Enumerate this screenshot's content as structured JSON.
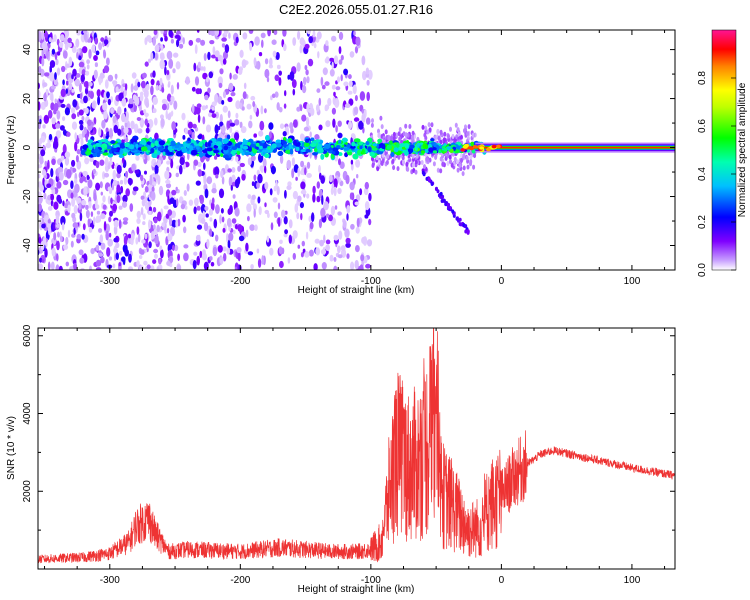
{
  "title": "C2E2.2026.055.01.27.R16",
  "chart_data": [
    {
      "type": "heatmap",
      "name": "spectrogram",
      "xlabel": "Height of straight line (km)",
      "ylabel": "Frequency (Hz)",
      "xlim": [
        -355,
        133
      ],
      "ylim": [
        -50,
        48
      ],
      "xticks": [
        -300,
        -200,
        -100,
        0,
        100
      ],
      "yticks": [
        -40,
        -20,
        0,
        20,
        40
      ],
      "colorbar": {
        "label": "Normalized spectral amplitude",
        "range": [
          0,
          1
        ],
        "ticks": [
          0.0,
          0.2,
          0.4,
          0.6,
          0.8
        ],
        "tick_labels": [
          "0.0",
          "0.2",
          "0.4",
          "0.6",
          "0.8"
        ],
        "colormap": [
          "#ffffff",
          "#7f00ff",
          "#0000ff",
          "#00ffff",
          "#00ff00",
          "#ffff00",
          "#ff7f00",
          "#ff0000",
          "#ff00ff"
        ]
      },
      "features": [
        {
          "desc": "broadband scattered speckle",
          "x_range": [
            -355,
            -100
          ],
          "y_range": [
            -50,
            48
          ],
          "amplitude": 0.15
        },
        {
          "desc": "dense band around 0 Hz",
          "x_range": [
            -320,
            -20
          ],
          "y_range": [
            -8,
            8
          ],
          "amplitude": 0.45
        },
        {
          "desc": "faint tail",
          "x_range": [
            -60,
            -25
          ],
          "y_range": [
            -35,
            -10
          ],
          "amplitude": 0.15
        },
        {
          "desc": "narrow carrier line at 0 Hz",
          "x_range": [
            -20,
            133
          ],
          "y_range": [
            -1,
            1
          ],
          "amplitude": 0.95
        }
      ]
    },
    {
      "type": "line",
      "name": "snr",
      "xlabel": "Height of straight line (km)",
      "ylabel": "SNR (10 * v/v)",
      "xlim": [
        -355,
        133
      ],
      "ylim": [
        0,
        6200
      ],
      "xticks": [
        -300,
        -200,
        -100,
        0,
        100
      ],
      "yticks": [
        2000,
        4000,
        6000
      ],
      "color": "#ee3333",
      "series": [
        {
          "name": "SNR",
          "x": [
            -355,
            -320,
            -300,
            -285,
            -280,
            -270,
            -265,
            -255,
            -240,
            -200,
            -170,
            -130,
            -110,
            -100,
            -92,
            -85,
            -80,
            -70,
            -62,
            -52,
            -45,
            -35,
            -25,
            -15,
            -10,
            0,
            10,
            20,
            30,
            40,
            60,
            80,
            100,
            133
          ],
          "y": [
            250,
            300,
            400,
            700,
            1100,
            1300,
            900,
            450,
            500,
            450,
            550,
            450,
            450,
            500,
            700,
            2200,
            3000,
            2600,
            2800,
            3600,
            1900,
            1500,
            1000,
            1100,
            1600,
            1900,
            2400,
            2700,
            2950,
            3050,
            2900,
            2750,
            2600,
            2400
          ]
        }
      ]
    }
  ]
}
